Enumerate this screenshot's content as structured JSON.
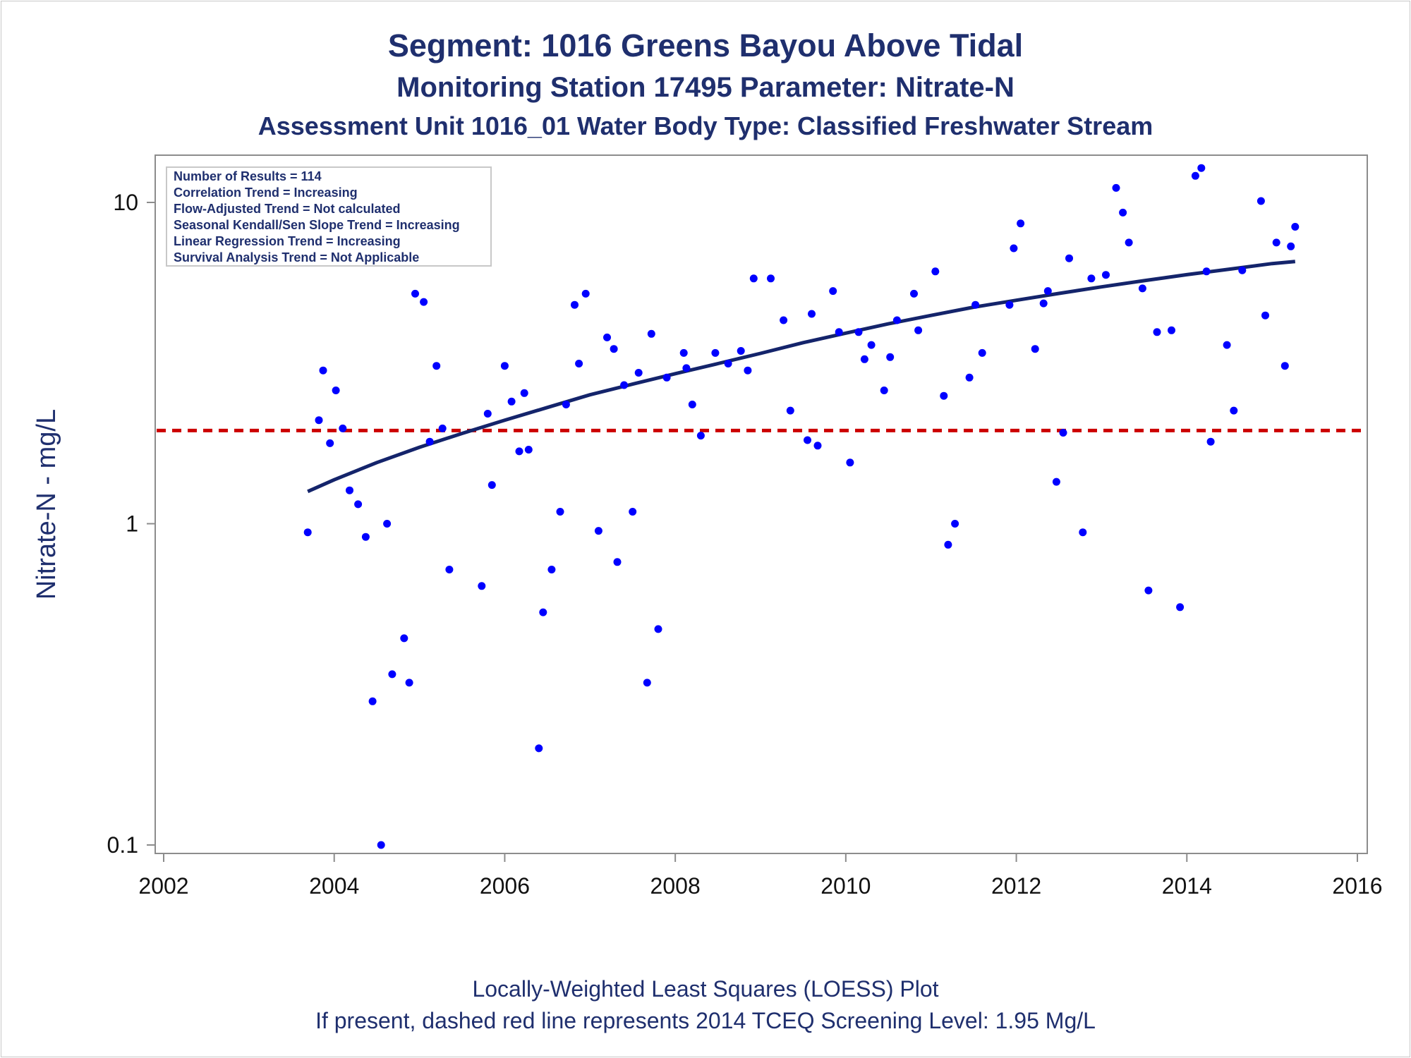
{
  "titles": {
    "line1": "Segment: 1016  Greens Bayou Above Tidal",
    "line2": "Monitoring Station 17495 Parameter: Nitrate-N",
    "line3": "Assessment Unit 1016_01   Water Body Type: Classified Freshwater Stream"
  },
  "footnotes": {
    "line1": "Locally-Weighted Least Squares (LOESS) Plot",
    "line2": "If present, dashed red line represents 2014 TCEQ Screening Level: 1.95 Mg/L"
  },
  "stats_box": [
    "Number of Results = 114",
    "Correlation Trend = Increasing",
    "Flow-Adjusted Trend = Not calculated",
    "Seasonal Kendall/Sen Slope Trend = Increasing",
    "Linear Regression Trend = Increasing",
    "Survival Analysis Trend = Not Applicable"
  ],
  "colors": {
    "points": "#0000ff",
    "loess": "#14246b",
    "screening": "#cc0000",
    "text": "#1f2f6e"
  },
  "chart_data": {
    "type": "scatter",
    "ylabel": "Nitrate-N - mg/L",
    "xlabel": "",
    "xlim": [
      2002,
      2016
    ],
    "ylim": [
      0.1,
      14
    ],
    "yscale": "log",
    "x_ticks": [
      "2002",
      "2004",
      "2006",
      "2008",
      "2010",
      "2012",
      "2014",
      "2016"
    ],
    "y_ticks": [
      "0.1",
      "1",
      "10"
    ],
    "reference_line": {
      "y": 1.95,
      "style": "dashed",
      "color": "#cc0000"
    },
    "series": [
      {
        "type": "scatter",
        "points": [
          [
            2003.69,
            0.94
          ],
          [
            2003.82,
            2.1
          ],
          [
            2003.87,
            3.0
          ],
          [
            2003.95,
            1.78
          ],
          [
            2004.02,
            2.6
          ],
          [
            2004.1,
            1.98
          ],
          [
            2004.18,
            1.27
          ],
          [
            2004.28,
            1.15
          ],
          [
            2004.37,
            0.91
          ],
          [
            2004.45,
            0.28
          ],
          [
            2004.55,
            0.1
          ],
          [
            2004.62,
            1.0
          ],
          [
            2004.68,
            0.34
          ],
          [
            2004.82,
            0.44
          ],
          [
            2004.88,
            0.32
          ],
          [
            2004.95,
            5.2
          ],
          [
            2005.05,
            4.9
          ],
          [
            2005.12,
            1.8
          ],
          [
            2005.2,
            3.1
          ],
          [
            2005.27,
            1.98
          ],
          [
            2005.35,
            0.72
          ],
          [
            2005.73,
            0.64
          ],
          [
            2005.8,
            2.2
          ],
          [
            2005.85,
            1.32
          ],
          [
            2006.0,
            3.1
          ],
          [
            2006.08,
            2.4
          ],
          [
            2006.17,
            1.68
          ],
          [
            2006.23,
            2.55
          ],
          [
            2006.28,
            1.7
          ],
          [
            2006.4,
            0.2
          ],
          [
            2006.45,
            0.53
          ],
          [
            2006.55,
            0.72
          ],
          [
            2006.65,
            1.09
          ],
          [
            2006.72,
            2.35
          ],
          [
            2006.82,
            4.8
          ],
          [
            2006.87,
            3.15
          ],
          [
            2006.95,
            5.2
          ],
          [
            2007.1,
            0.95
          ],
          [
            2007.2,
            3.8
          ],
          [
            2007.28,
            3.5
          ],
          [
            2007.32,
            0.76
          ],
          [
            2007.4,
            2.7
          ],
          [
            2007.5,
            1.09
          ],
          [
            2007.57,
            2.95
          ],
          [
            2007.67,
            0.32
          ],
          [
            2007.72,
            3.9
          ],
          [
            2007.8,
            0.47
          ],
          [
            2007.9,
            2.85
          ],
          [
            2008.1,
            3.4
          ],
          [
            2008.13,
            3.05
          ],
          [
            2008.2,
            2.35
          ],
          [
            2008.3,
            1.88
          ],
          [
            2008.47,
            3.4
          ],
          [
            2008.62,
            3.15
          ],
          [
            2008.77,
            3.45
          ],
          [
            2008.85,
            3.0
          ],
          [
            2008.92,
            5.8
          ],
          [
            2009.12,
            5.8
          ],
          [
            2009.27,
            4.3
          ],
          [
            2009.35,
            2.25
          ],
          [
            2009.55,
            1.82
          ],
          [
            2009.6,
            4.5
          ],
          [
            2009.67,
            1.75
          ],
          [
            2009.85,
            5.3
          ],
          [
            2009.92,
            3.95
          ],
          [
            2010.05,
            1.55
          ],
          [
            2010.15,
            3.95
          ],
          [
            2010.22,
            3.25
          ],
          [
            2010.3,
            3.6
          ],
          [
            2010.45,
            2.6
          ],
          [
            2010.52,
            3.3
          ],
          [
            2010.6,
            4.3
          ],
          [
            2010.8,
            5.2
          ],
          [
            2010.85,
            4.0
          ],
          [
            2011.05,
            6.1
          ],
          [
            2011.15,
            2.5
          ],
          [
            2011.2,
            0.86
          ],
          [
            2011.28,
            1.0
          ],
          [
            2011.45,
            2.85
          ],
          [
            2011.52,
            4.8
          ],
          [
            2011.6,
            3.4
          ],
          [
            2011.92,
            4.8
          ],
          [
            2011.97,
            7.2
          ],
          [
            2012.05,
            8.6
          ],
          [
            2012.22,
            3.5
          ],
          [
            2012.32,
            4.85
          ],
          [
            2012.37,
            5.3
          ],
          [
            2012.47,
            1.35
          ],
          [
            2012.55,
            1.92
          ],
          [
            2012.62,
            6.7
          ],
          [
            2012.78,
            0.94
          ],
          [
            2012.88,
            5.8
          ],
          [
            2013.05,
            5.95
          ],
          [
            2013.17,
            11.1
          ],
          [
            2013.25,
            9.3
          ],
          [
            2013.32,
            7.5
          ],
          [
            2013.48,
            5.4
          ],
          [
            2013.55,
            0.62
          ],
          [
            2013.65,
            3.95
          ],
          [
            2013.82,
            4.0
          ],
          [
            2013.92,
            0.55
          ],
          [
            2014.1,
            12.1
          ],
          [
            2014.17,
            12.8
          ],
          [
            2014.23,
            6.1
          ],
          [
            2014.28,
            1.8
          ],
          [
            2014.47,
            3.6
          ],
          [
            2014.55,
            2.25
          ],
          [
            2014.65,
            6.15
          ],
          [
            2014.87,
            10.1
          ],
          [
            2014.92,
            4.45
          ],
          [
            2015.05,
            7.5
          ],
          [
            2015.15,
            3.1
          ],
          [
            2015.22,
            7.3
          ],
          [
            2015.27,
            8.4
          ]
        ]
      },
      {
        "type": "line",
        "points": [
          [
            2003.69,
            1.26
          ],
          [
            2004.0,
            1.37
          ],
          [
            2004.5,
            1.55
          ],
          [
            2005.0,
            1.73
          ],
          [
            2005.5,
            1.91
          ],
          [
            2006.0,
            2.1
          ],
          [
            2006.5,
            2.3
          ],
          [
            2007.0,
            2.52
          ],
          [
            2007.5,
            2.72
          ],
          [
            2008.0,
            2.93
          ],
          [
            2008.5,
            3.15
          ],
          [
            2009.0,
            3.39
          ],
          [
            2009.5,
            3.66
          ],
          [
            2010.0,
            3.92
          ],
          [
            2010.5,
            4.19
          ],
          [
            2011.0,
            4.45
          ],
          [
            2011.5,
            4.72
          ],
          [
            2012.0,
            4.96
          ],
          [
            2012.5,
            5.21
          ],
          [
            2013.0,
            5.46
          ],
          [
            2013.5,
            5.71
          ],
          [
            2014.0,
            5.96
          ],
          [
            2014.5,
            6.2
          ],
          [
            2015.0,
            6.45
          ],
          [
            2015.27,
            6.55
          ]
        ]
      }
    ]
  }
}
